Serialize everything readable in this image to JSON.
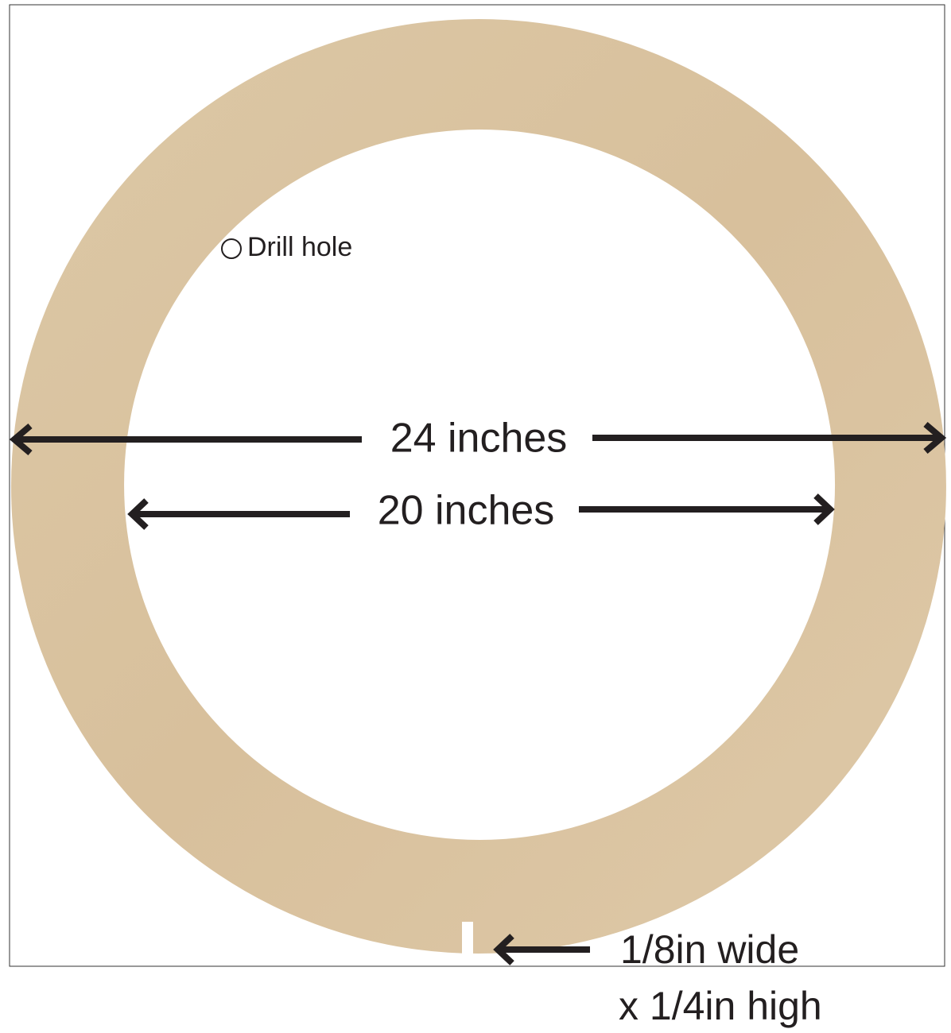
{
  "labels": {
    "drill_hole": "Drill hole",
    "outer_diameter": "24 inches",
    "inner_diameter": "20 inches",
    "notch_width": "1/8in wide",
    "notch_height": "x 1/4in high"
  }
}
